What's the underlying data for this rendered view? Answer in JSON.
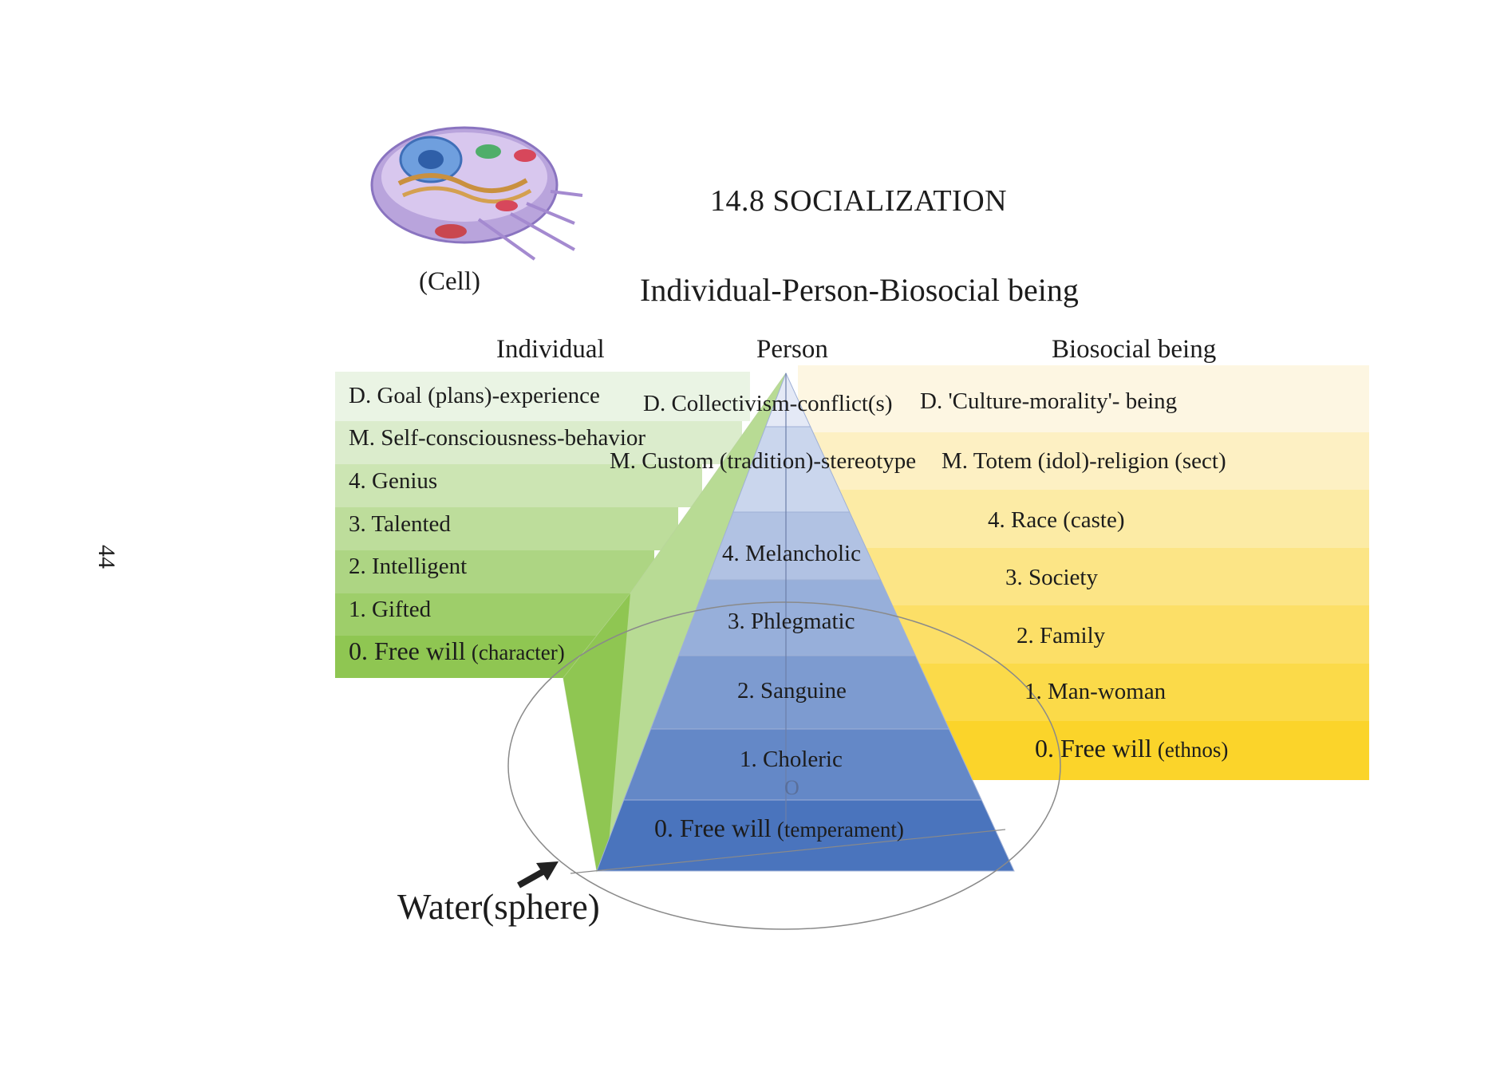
{
  "page_number": "44",
  "title": "14.8 SOCIALIZATION",
  "subtitle": "Individual-Person-Biosocial being",
  "cell_label": "(Cell)",
  "columns": {
    "individual": "Individual",
    "person": "Person",
    "biosocial": "Biosocial being"
  },
  "individual_levels": [
    {
      "label": "D. Goal (plans)-experience"
    },
    {
      "label": "M. Self-consciousness-behavior"
    },
    {
      "label": "4. Genius"
    },
    {
      "label": "3. Talented"
    },
    {
      "label": "2. Intelligent"
    },
    {
      "label": "1. Gifted"
    },
    {
      "label": "0. Free will",
      "note": "(character)"
    }
  ],
  "person_levels": [
    {
      "label": "D. Collectivism-conflict(s)"
    },
    {
      "label": "M. Custom (tradition)-stereotype"
    },
    {
      "label": "4. Melancholic"
    },
    {
      "label": "3. Phlegmatic"
    },
    {
      "label": "2. Sanguine"
    },
    {
      "label": "1. Choleric"
    },
    {
      "label": "0. Free will",
      "note": "(temperament)"
    }
  ],
  "biosocial_levels": [
    {
      "label": "D. 'Culture-morality'- being"
    },
    {
      "label": "M. Totem (idol)-religion (sect)"
    },
    {
      "label": "4. Race (caste)"
    },
    {
      "label": "3. Society"
    },
    {
      "label": "2. Family"
    },
    {
      "label": "1. Man-woman"
    },
    {
      "label": "0. Free will",
      "note": "(ethnos)"
    }
  ],
  "center_mark": "O",
  "water_label": "Water(sphere)",
  "colors": {
    "green_light": "#eaf4e4",
    "green_dark": "#8fc652",
    "yellow_light": "#fdf6e2",
    "yellow_dark": "#fbd42a",
    "blue_light": "#e4e9f6",
    "blue_dark": "#4a74bd",
    "outline": "#8a8a8a"
  },
  "icons": [
    "cell-illustration",
    "arrow-icon"
  ]
}
